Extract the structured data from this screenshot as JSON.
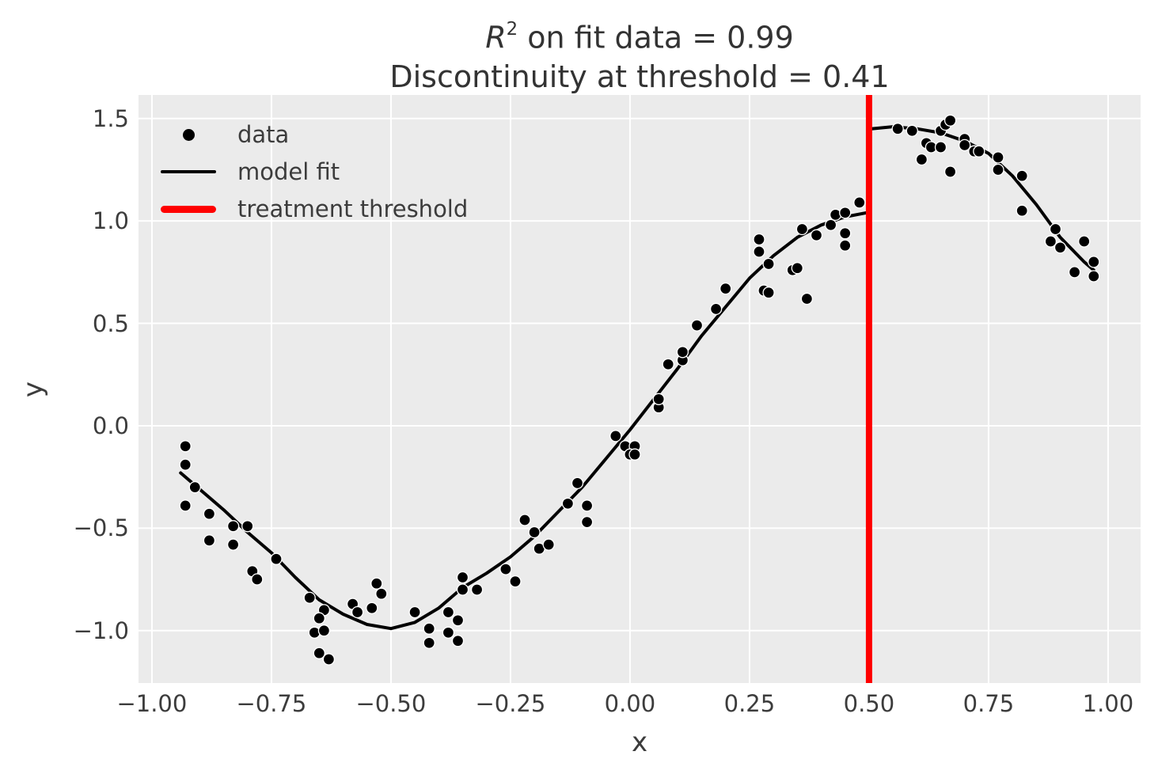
{
  "chart_data": {
    "type": "scatter",
    "title": {
      "r": "R",
      "exponent": "2",
      "line1_rest": " on fit data = 0.99",
      "line1_plain": "R² on fit data = 0.99",
      "line2": "Discontinuity at threshold = 0.41"
    },
    "r_squared": 0.99,
    "discontinuity": 0.41,
    "threshold_x": 0.5,
    "xlabel": "x",
    "ylabel": "y",
    "xlim": [
      -1.028,
      1.068
    ],
    "ylim": [
      -1.256,
      1.615
    ],
    "grid": true,
    "legend_position": "upper left",
    "x_ticks": [
      {
        "v": -1.0,
        "label": "−1.00"
      },
      {
        "v": -0.75,
        "label": "−0.75"
      },
      {
        "v": -0.5,
        "label": "−0.50"
      },
      {
        "v": -0.25,
        "label": "−0.25"
      },
      {
        "v": 0.0,
        "label": "0.00"
      },
      {
        "v": 0.25,
        "label": "0.25"
      },
      {
        "v": 0.5,
        "label": "0.50"
      },
      {
        "v": 0.75,
        "label": "0.75"
      },
      {
        "v": 1.0,
        "label": "1.00"
      }
    ],
    "y_ticks": [
      {
        "v": 1.5,
        "label": "1.5"
      },
      {
        "v": 1.0,
        "label": "1.0"
      },
      {
        "v": 0.5,
        "label": "0.5"
      },
      {
        "v": 0.0,
        "label": "0.0"
      },
      {
        "v": -0.5,
        "label": "−0.5"
      },
      {
        "v": -1.0,
        "label": "−1.0"
      }
    ],
    "series": [
      {
        "name": "data",
        "type": "scatter",
        "x": [
          -0.93,
          -0.93,
          -0.91,
          -0.93,
          -0.88,
          -0.88,
          -0.83,
          -0.8,
          -0.83,
          -0.74,
          -0.79,
          -0.78,
          -0.67,
          -0.64,
          -0.65,
          -0.66,
          -0.64,
          -0.65,
          -0.63,
          -0.58,
          -0.57,
          -0.54,
          -0.53,
          -0.52,
          -0.45,
          -0.42,
          -0.42,
          -0.38,
          -0.36,
          -0.38,
          -0.36,
          -0.35,
          -0.35,
          -0.32,
          -0.26,
          -0.24,
          -0.22,
          -0.2,
          -0.19,
          -0.17,
          -0.13,
          -0.11,
          -0.09,
          -0.09,
          -0.03,
          -0.01,
          0.01,
          0.0,
          0.01,
          0.06,
          0.06,
          0.08,
          0.11,
          0.11,
          0.14,
          0.18,
          0.2,
          0.27,
          0.27,
          0.29,
          0.28,
          0.29,
          0.34,
          0.35,
          0.36,
          0.39,
          0.37,
          0.42,
          0.43,
          0.45,
          0.48,
          0.45,
          0.45,
          0.56,
          0.59,
          0.65,
          0.66,
          0.67,
          0.7,
          0.62,
          0.63,
          0.65,
          0.61,
          0.67,
          0.7,
          0.72,
          0.73,
          0.77,
          0.77,
          0.82,
          0.82,
          0.89,
          0.88,
          0.9,
          0.95,
          0.93,
          0.97,
          0.97
        ],
        "y": [
          -0.1,
          -0.19,
          -0.3,
          -0.39,
          -0.43,
          -0.56,
          -0.49,
          -0.49,
          -0.58,
          -0.65,
          -0.71,
          -0.75,
          -0.84,
          -0.9,
          -0.94,
          -1.01,
          -1.0,
          -1.11,
          -1.14,
          -0.87,
          -0.91,
          -0.89,
          -0.77,
          -0.82,
          -0.91,
          -0.99,
          -1.06,
          -0.91,
          -0.95,
          -1.01,
          -1.05,
          -0.74,
          -0.8,
          -0.8,
          -0.7,
          -0.76,
          -0.46,
          -0.52,
          -0.6,
          -0.58,
          -0.38,
          -0.28,
          -0.39,
          -0.47,
          -0.05,
          -0.1,
          -0.1,
          -0.14,
          -0.14,
          0.09,
          0.13,
          0.3,
          0.32,
          0.36,
          0.49,
          0.57,
          0.67,
          0.91,
          0.85,
          0.79,
          0.66,
          0.65,
          0.76,
          0.77,
          0.96,
          0.93,
          0.62,
          0.98,
          1.03,
          1.04,
          1.09,
          0.94,
          0.88,
          1.45,
          1.44,
          1.44,
          1.47,
          1.49,
          1.4,
          1.38,
          1.36,
          1.36,
          1.3,
          1.24,
          1.37,
          1.34,
          1.34,
          1.31,
          1.25,
          1.22,
          1.05,
          0.96,
          0.9,
          0.87,
          0.9,
          0.75,
          0.8,
          0.73
        ]
      },
      {
        "name": "model fit",
        "type": "line",
        "segments": [
          {
            "x": [
              -0.94,
              -0.9,
              -0.85,
              -0.8,
              -0.75,
              -0.7,
              -0.65,
              -0.6,
              -0.55,
              -0.5,
              -0.45,
              -0.4,
              -0.35,
              -0.3,
              -0.25,
              -0.2,
              -0.15,
              -0.1,
              -0.05,
              0.0,
              0.05,
              0.1,
              0.15,
              0.2,
              0.25,
              0.3,
              0.35,
              0.4,
              0.45,
              0.495
            ],
            "y": [
              -0.23,
              -0.31,
              -0.41,
              -0.52,
              -0.62,
              -0.74,
              -0.85,
              -0.92,
              -0.97,
              -0.99,
              -0.96,
              -0.89,
              -0.79,
              -0.72,
              -0.64,
              -0.54,
              -0.42,
              -0.3,
              -0.16,
              -0.02,
              0.13,
              0.28,
              0.44,
              0.58,
              0.72,
              0.83,
              0.92,
              0.98,
              1.02,
              1.04
            ]
          },
          {
            "x": [
              0.505,
              0.55,
              0.6,
              0.65,
              0.7,
              0.75,
              0.8,
              0.85,
              0.9,
              0.95,
              0.97
            ],
            "y": [
              1.45,
              1.46,
              1.45,
              1.43,
              1.39,
              1.33,
              1.22,
              1.08,
              0.92,
              0.8,
              0.76
            ]
          }
        ]
      },
      {
        "name": "treatment threshold",
        "type": "vline",
        "x": 0.5
      }
    ],
    "legend": [
      {
        "label": "data",
        "marker": "dot",
        "color": "#000000"
      },
      {
        "label": "model fit",
        "marker": "line",
        "color": "#000000"
      },
      {
        "label": "treatment threshold",
        "marker": "thick-line",
        "color": "#ff0000"
      }
    ],
    "colors": {
      "plot_bg": "#ebebeb",
      "grid": "#ffffff",
      "scatter": "#000000",
      "scatter_edge": "#ffffff",
      "fit_line": "#000000",
      "threshold": "#ff0000",
      "text": "#3c3c3c"
    }
  }
}
